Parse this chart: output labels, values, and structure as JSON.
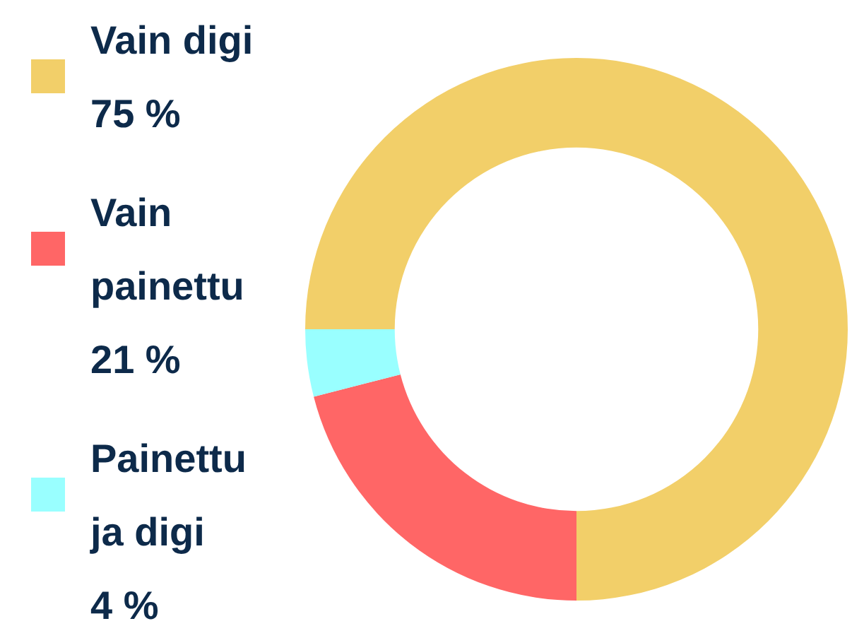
{
  "chart_data": {
    "type": "donut",
    "categories": [
      "Vain digi",
      "Vain painettu",
      "Painettu ja digi"
    ],
    "values": [
      75,
      21,
      4
    ],
    "colors": [
      "#f2cf69",
      "#ff6666",
      "#99ffff"
    ],
    "value_labels": [
      "75 %",
      "21 %",
      "4 %"
    ],
    "legend": "left"
  }
}
